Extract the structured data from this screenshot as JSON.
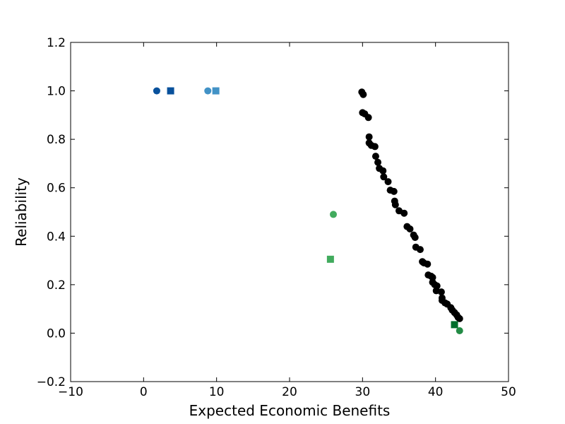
{
  "chart_data": {
    "type": "scatter",
    "title": "",
    "xlabel": "Expected Economic Benefits",
    "ylabel": "Reliability",
    "xlim": [
      -10,
      50
    ],
    "ylim": [
      -0.2,
      1.2
    ],
    "xticks": [
      -10,
      0,
      10,
      20,
      30,
      40,
      50
    ],
    "yticks": [
      -0.2,
      0.0,
      0.2,
      0.4,
      0.6,
      0.8,
      1.0,
      1.2
    ],
    "xtick_labels": [
      "−10",
      "0",
      "10",
      "20",
      "30",
      "40",
      "50"
    ],
    "ytick_labels": [
      "−0.2",
      "0.0",
      "0.2",
      "0.4",
      "0.6",
      "0.8",
      "1.0",
      "1.2"
    ],
    "grid": false,
    "legend": "none",
    "series": [
      {
        "marker": "circle",
        "color": "#000000",
        "points": [
          [
            29.9,
            0.995
          ],
          [
            30.1,
            0.985
          ],
          [
            30.0,
            0.91
          ],
          [
            30.3,
            0.905
          ],
          [
            30.8,
            0.89
          ],
          [
            30.9,
            0.81
          ],
          [
            30.9,
            0.785
          ],
          [
            31.2,
            0.775
          ],
          [
            31.7,
            0.77
          ],
          [
            31.8,
            0.73
          ],
          [
            32.1,
            0.705
          ],
          [
            32.3,
            0.68
          ],
          [
            32.8,
            0.67
          ],
          [
            32.9,
            0.645
          ],
          [
            33.5,
            0.625
          ],
          [
            33.8,
            0.59
          ],
          [
            34.3,
            0.585
          ],
          [
            34.4,
            0.545
          ],
          [
            34.5,
            0.53
          ],
          [
            35.0,
            0.505
          ],
          [
            35.7,
            0.495
          ],
          [
            36.1,
            0.44
          ],
          [
            36.5,
            0.43
          ],
          [
            37.0,
            0.405
          ],
          [
            37.2,
            0.395
          ],
          [
            37.3,
            0.355
          ],
          [
            37.9,
            0.345
          ],
          [
            38.2,
            0.295
          ],
          [
            38.4,
            0.29
          ],
          [
            38.9,
            0.285
          ],
          [
            39.0,
            0.24
          ],
          [
            39.4,
            0.235
          ],
          [
            39.6,
            0.23
          ],
          [
            39.6,
            0.21
          ],
          [
            39.9,
            0.2
          ],
          [
            40.2,
            0.195
          ],
          [
            40.1,
            0.175
          ],
          [
            40.8,
            0.17
          ],
          [
            40.9,
            0.145
          ],
          [
            40.9,
            0.135
          ],
          [
            41.3,
            0.125
          ],
          [
            41.6,
            0.12
          ],
          [
            42.1,
            0.105
          ],
          [
            42.3,
            0.095
          ],
          [
            42.6,
            0.085
          ],
          [
            42.9,
            0.075
          ],
          [
            43.1,
            0.065
          ],
          [
            43.3,
            0.06
          ]
        ]
      },
      {
        "marker": "circle",
        "color": "#08519c",
        "points": [
          [
            1.8,
            1.0
          ]
        ]
      },
      {
        "marker": "square",
        "color": "#08519c",
        "points": [
          [
            3.7,
            1.0
          ]
        ]
      },
      {
        "marker": "circle",
        "color": "#4292c6",
        "points": [
          [
            8.8,
            1.0
          ]
        ]
      },
      {
        "marker": "square",
        "color": "#4292c6",
        "points": [
          [
            9.9,
            1.0
          ]
        ]
      },
      {
        "marker": "circle",
        "color": "#41ab5d",
        "points": [
          [
            26.0,
            0.49
          ]
        ]
      },
      {
        "marker": "square",
        "color": "#41ab5d",
        "points": [
          [
            25.6,
            0.305
          ]
        ]
      },
      {
        "marker": "square",
        "color": "#006d2c",
        "points": [
          [
            42.6,
            0.035
          ]
        ]
      },
      {
        "marker": "circle",
        "color": "#238b45",
        "points": [
          [
            43.3,
            0.01
          ]
        ]
      }
    ]
  }
}
